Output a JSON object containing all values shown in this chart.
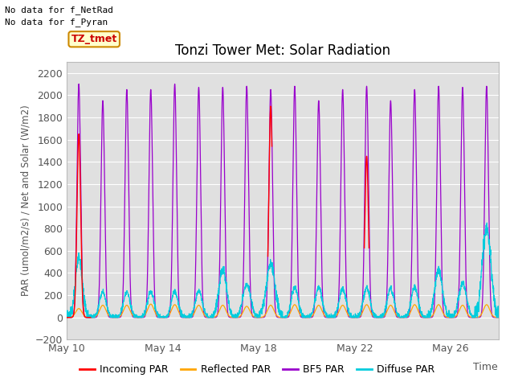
{
  "title": "Tonzi Tower Met: Solar Radiation",
  "xlabel": "Time",
  "ylabel": "PAR (umol/m2/s) / Net and Solar (W/m2)",
  "ylim": [
    -200,
    2300
  ],
  "yticks": [
    -200,
    0,
    200,
    400,
    600,
    800,
    1000,
    1200,
    1400,
    1600,
    1800,
    2000,
    2200
  ],
  "bg_color": "#e0e0e0",
  "fig_bg": "#ffffff",
  "annotation_line1": "No data for f_NetRad",
  "annotation_line2": "No data for f_Pyran",
  "tag_label": "TZ_tmet",
  "tag_color": "#cc0000",
  "tag_bg": "#ffffcc",
  "tag_border": "#cc8800",
  "colors": {
    "incoming": "#ff0000",
    "reflected": "#ffa500",
    "bfs": "#9900cc",
    "diffuse": "#00ccdd"
  },
  "legend": [
    "Incoming PAR",
    "Reflected PAR",
    "BF5 PAR",
    "Diffuse PAR"
  ],
  "x_tick_labels": [
    "May 10",
    "May 14",
    "May 18",
    "May 22",
    "May 26"
  ],
  "x_tick_positions": [
    9,
    13,
    17,
    21,
    25
  ],
  "start_day": 9,
  "num_days": 18
}
